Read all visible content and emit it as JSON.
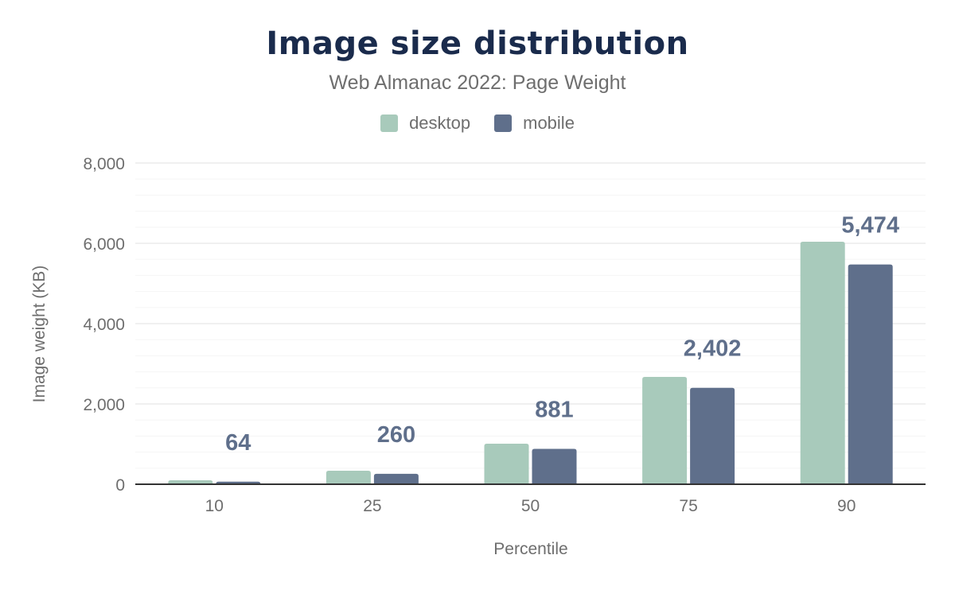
{
  "chart_data": {
    "type": "bar",
    "title": "Image size distribution",
    "subtitle": "Web Almanac 2022: Page Weight",
    "xlabel": "Percentile",
    "ylabel": "Image weight (KB)",
    "categories": [
      "10",
      "25",
      "50",
      "75",
      "90"
    ],
    "ylim": [
      0,
      8000
    ],
    "yticks": [
      0,
      2000,
      4000,
      6000,
      8000
    ],
    "ytick_labels": [
      "0",
      "2,000",
      "4,000",
      "6,000",
      "8,000"
    ],
    "grid": true,
    "legend_position": "top",
    "series": [
      {
        "name": "desktop",
        "color": "#a8cabb",
        "values": [
          99,
          337,
          1010,
          2673,
          6040
        ]
      },
      {
        "name": "mobile",
        "color": "#5f6f8b",
        "values": [
          64,
          260,
          881,
          2402,
          5474
        ],
        "data_labels": [
          "64",
          "260",
          "881",
          "2,402",
          "5,474"
        ]
      }
    ]
  }
}
